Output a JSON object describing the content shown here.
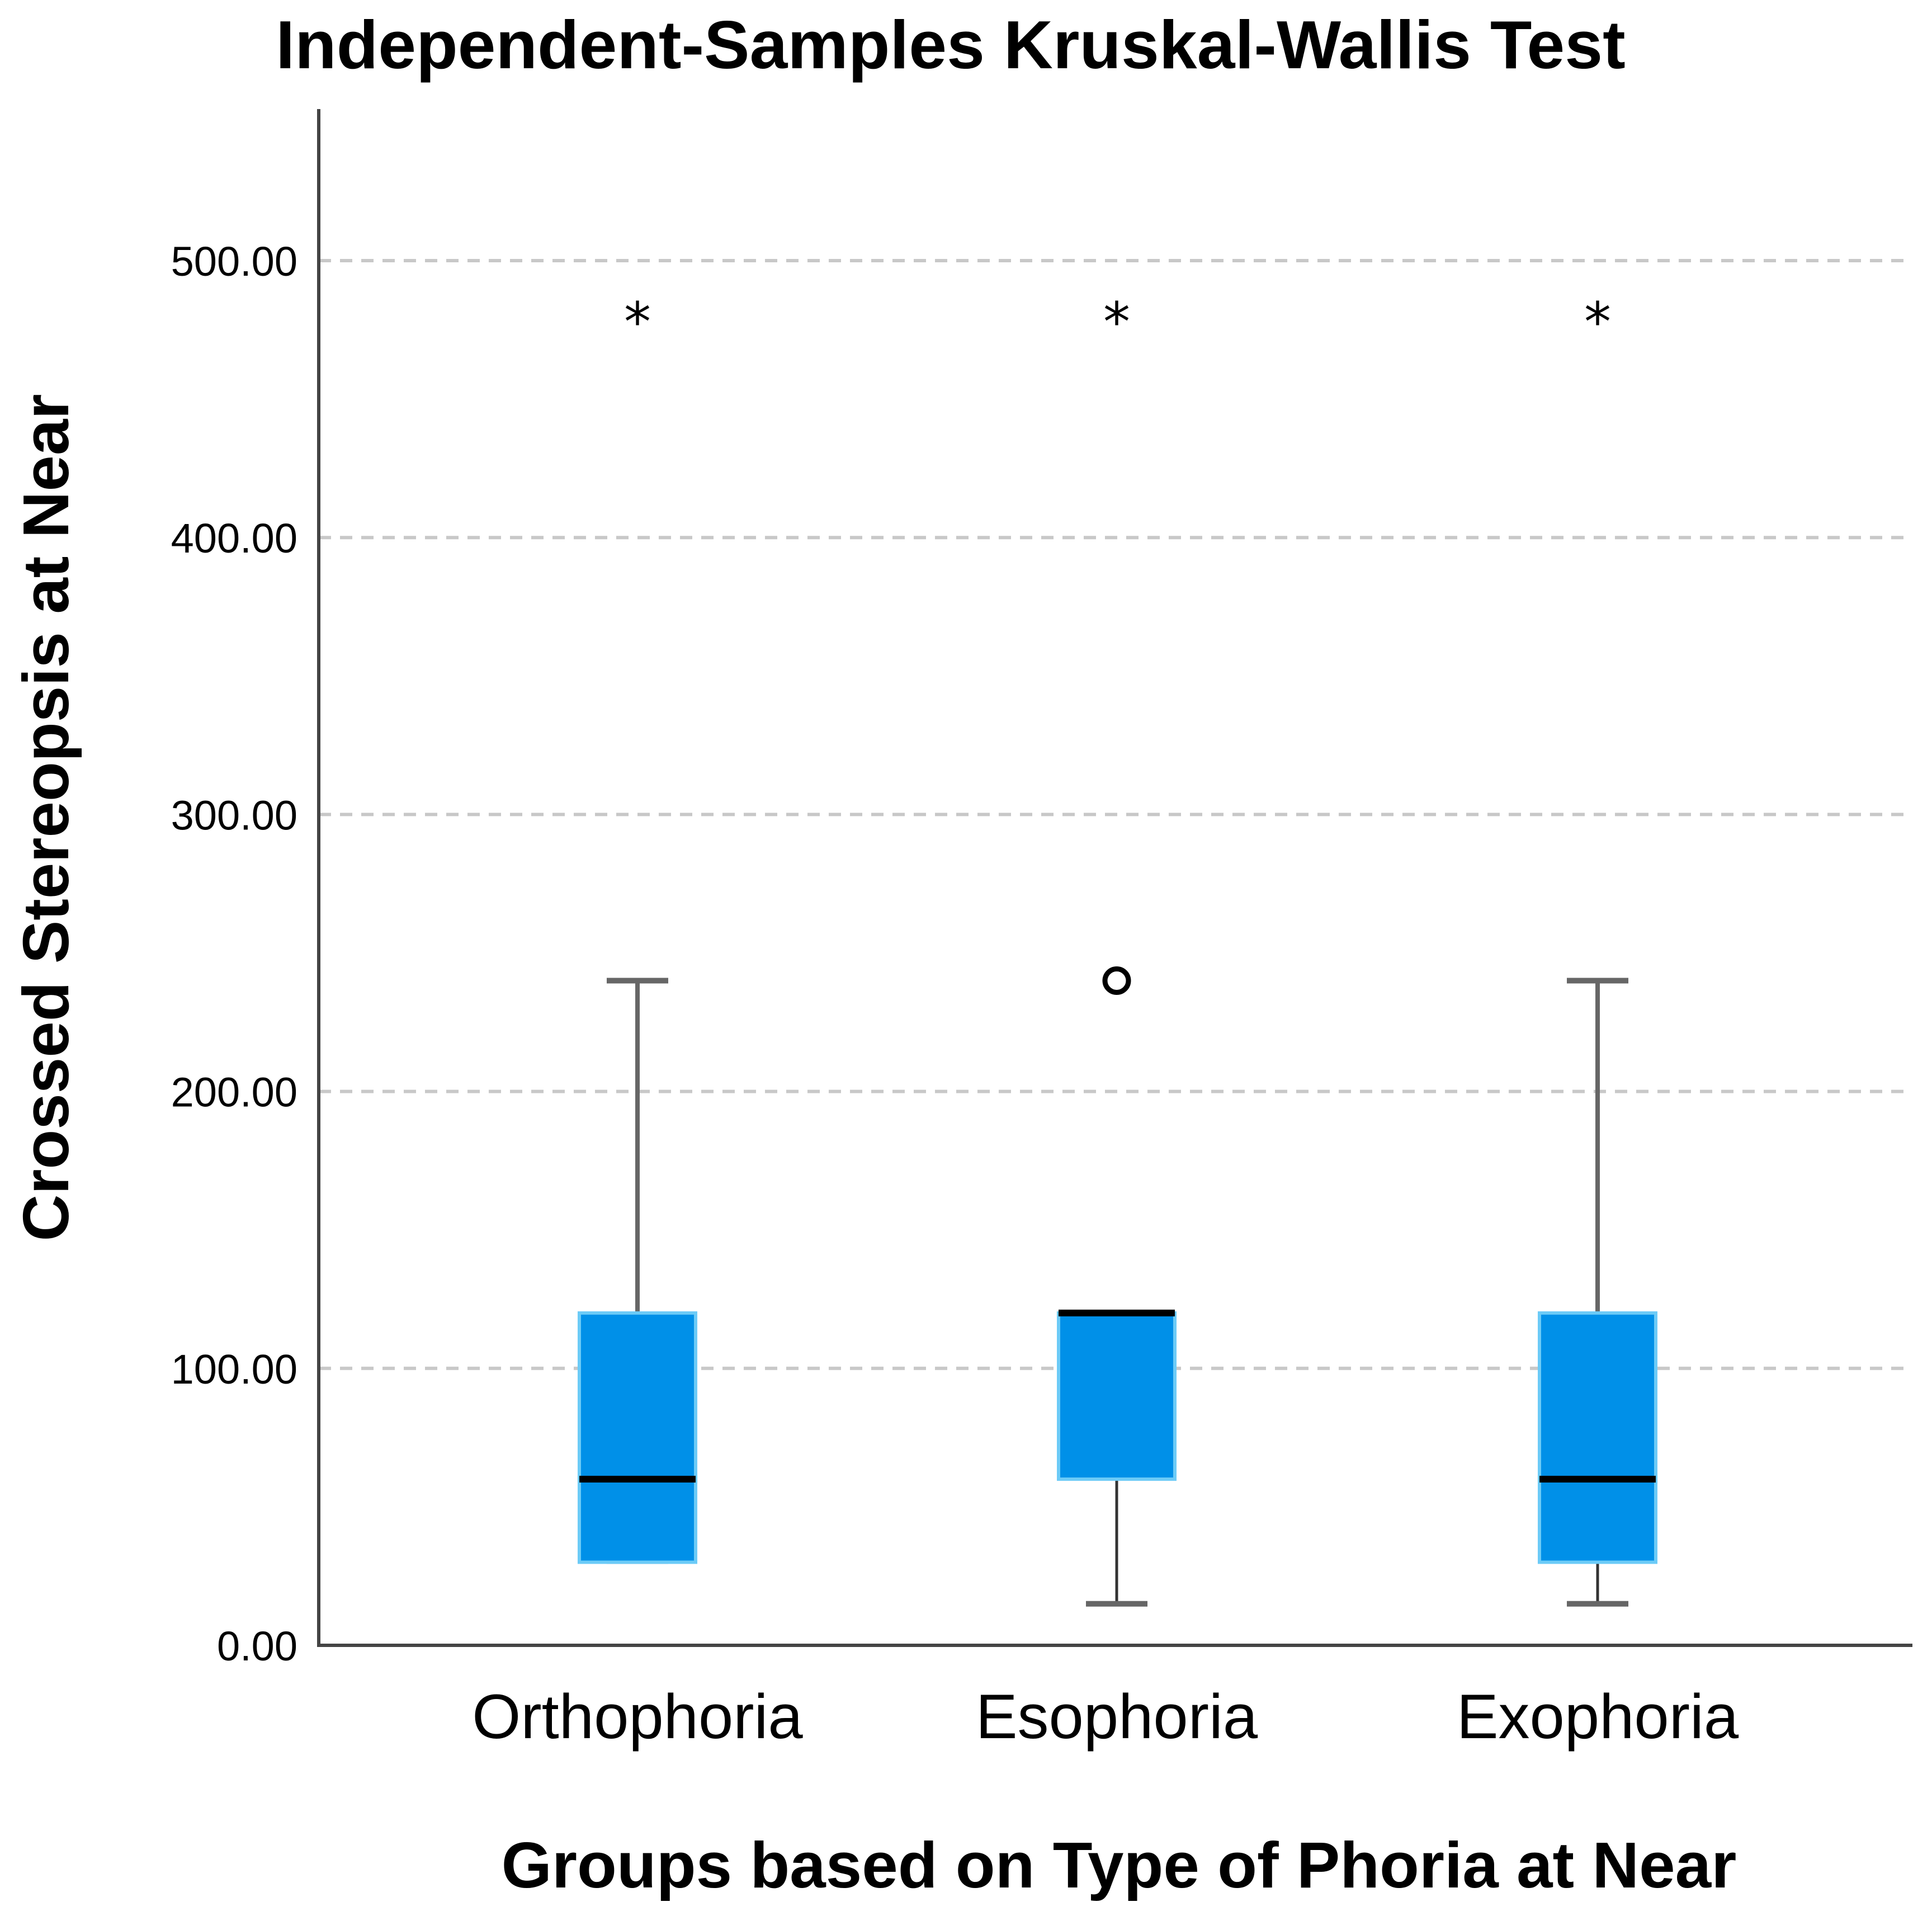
{
  "chart_data": {
    "type": "box",
    "title": "Independent-Samples Kruskal-Wallis Test",
    "xlabel": "Groups based on Type of Phoria at Near",
    "ylabel": "Crossed Stereopsis at Near",
    "ylim": [
      0,
      550
    ],
    "yticks": [
      "0.00",
      "100.00",
      "200.00",
      "300.00",
      "400.00",
      "500.00"
    ],
    "ytick_values": [
      0,
      100,
      200,
      300,
      400,
      500
    ],
    "grid": "horizontal dashed",
    "categories": [
      "Orthophoria",
      "Esophoria",
      "Exophoria"
    ],
    "boxes": [
      {
        "category": "Orthophoria",
        "whisker_low": 30,
        "q1": 30,
        "median": 60,
        "q3": 120,
        "whisker_high": 240,
        "outliers": [],
        "extremes": [
          480
        ]
      },
      {
        "category": "Esophoria",
        "whisker_low": 15,
        "q1": 60,
        "median": 120,
        "q3": 120,
        "whisker_high": 120,
        "outliers": [
          240
        ],
        "extremes": [
          480
        ]
      },
      {
        "category": "Exophoria",
        "whisker_low": 15,
        "q1": 30,
        "median": 60,
        "q3": 120,
        "whisker_high": 240,
        "outliers": [],
        "extremes": [
          480
        ]
      }
    ],
    "colors": {
      "box_fill": "#0090E8",
      "box_edge": "#6CCBF7",
      "median": "#000000",
      "whisker": "#666666",
      "grid": "#C8C8C8",
      "axis": "#444444"
    }
  }
}
